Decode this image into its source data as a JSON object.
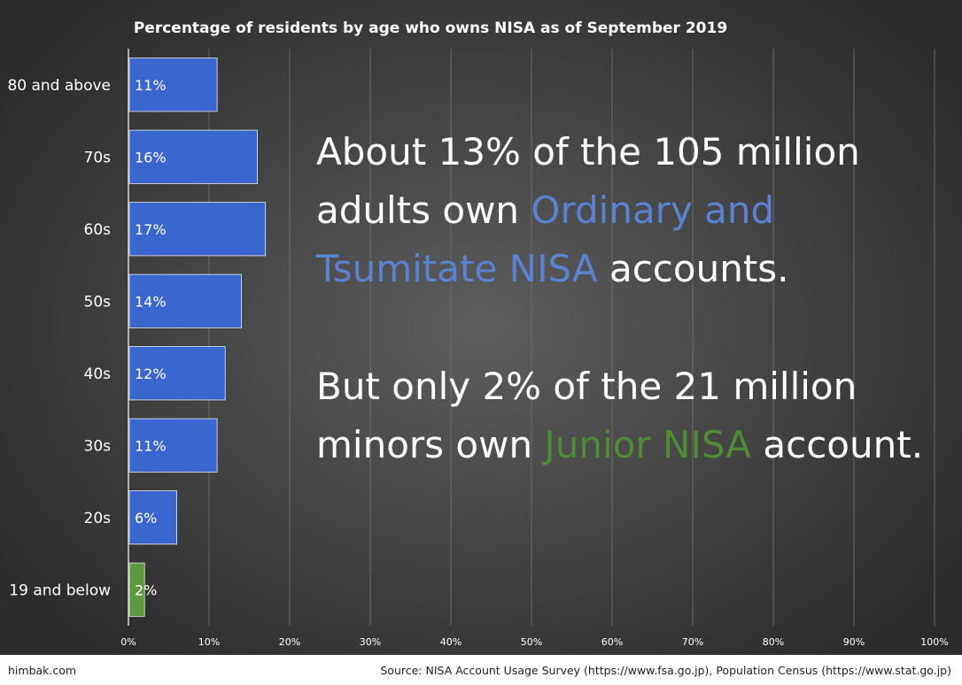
{
  "chart_data": {
    "type": "bar",
    "orientation": "horizontal",
    "title": "Percentage of residents by age who owns NISA as of September 2019",
    "categories": [
      "80 and above",
      "70s",
      "60s",
      "50s",
      "40s",
      "30s",
      "20s",
      "19 and below"
    ],
    "values": [
      11,
      16,
      17,
      14,
      12,
      11,
      6,
      2
    ],
    "data_labels": [
      "11%",
      "16%",
      "17%",
      "14%",
      "12%",
      "11%",
      "6%",
      "2%"
    ],
    "bar_colors": [
      "#3a67cf",
      "#3a67cf",
      "#3a67cf",
      "#3a67cf",
      "#3a67cf",
      "#3a67cf",
      "#3a67cf",
      "#5c9a3d"
    ],
    "xlim": [
      0,
      100
    ],
    "x_ticks": [
      "0%",
      "10%",
      "20%",
      "30%",
      "40%",
      "50%",
      "60%",
      "70%",
      "80%",
      "90%",
      "100%"
    ],
    "grid": true,
    "xlabel": "",
    "ylabel": ""
  },
  "callouts": {
    "adults": {
      "part1": "About 13% of the 105 million adults own ",
      "highlight": "Ordinary and Tsumitate NISA",
      "part2": " accounts."
    },
    "minors": {
      "part1": "But only 2% of the 21 million minors own ",
      "highlight": "Junior NISA",
      "part2": " account."
    }
  },
  "colors": {
    "adult_highlight": "#5a82d2",
    "minor_highlight": "#4f8a34"
  },
  "footer": {
    "site": "himbak.com",
    "source": "Source: NISA Account Usage Survey (https://www.fsa.go.jp), Population Census (https://www.stat.go.jp)"
  }
}
